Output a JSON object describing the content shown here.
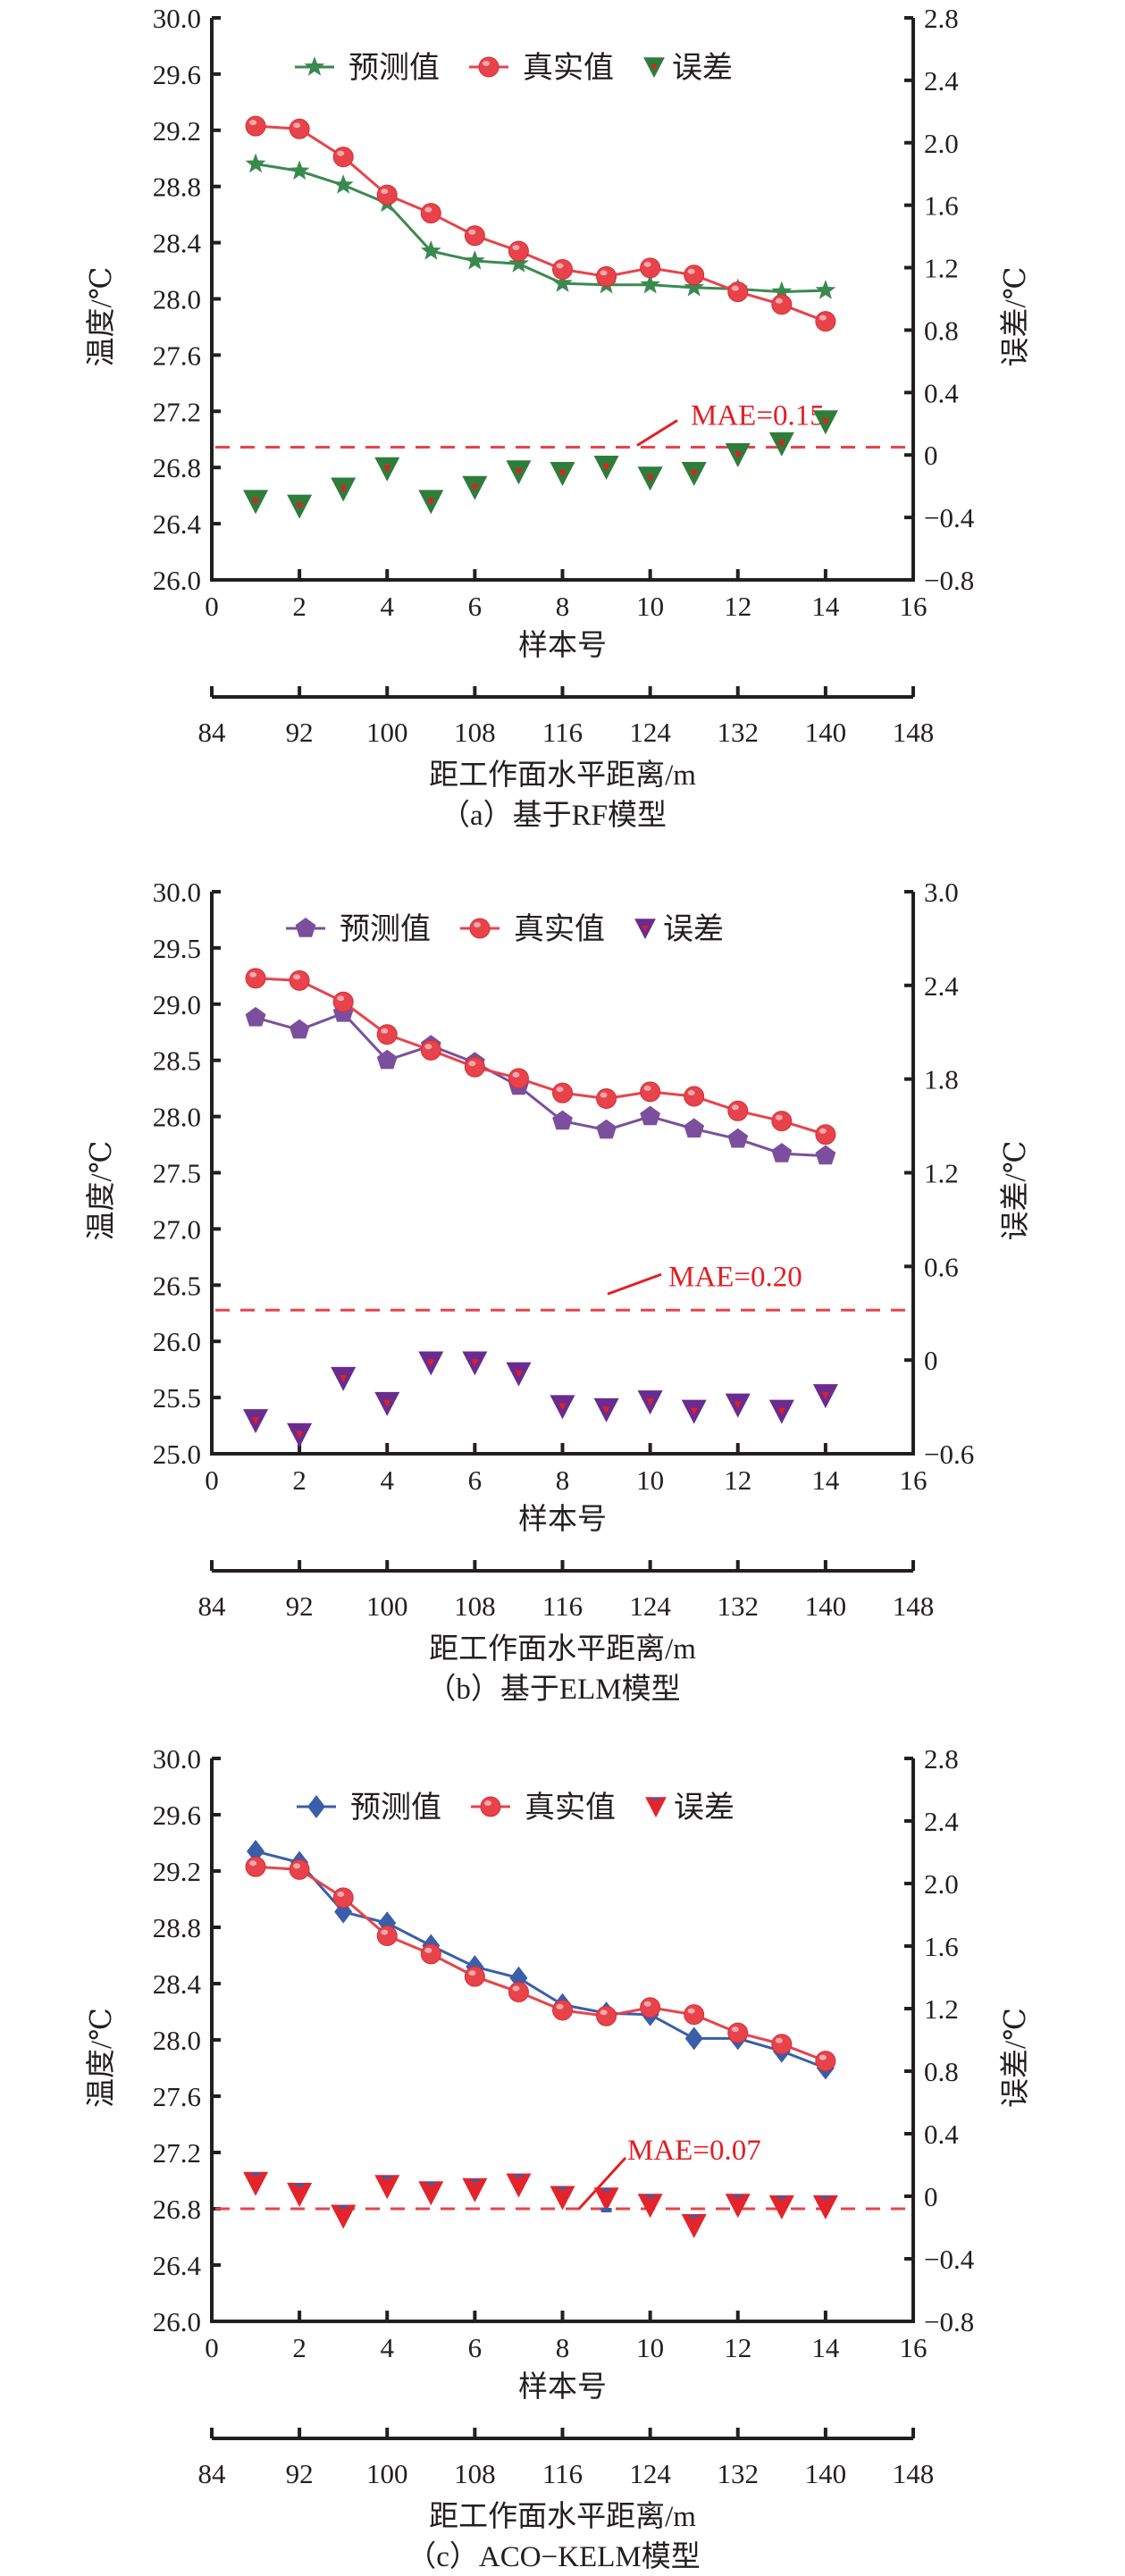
{
  "figure": {
    "x_axis_label": "样本号",
    "distance_axis_label": "距工作面水平距离/m",
    "left_axis_label": "温度/℃",
    "right_axis_label": "误差/℃",
    "legend": {
      "predicted": "预测值",
      "actual": "真实值",
      "error": "误差"
    }
  },
  "chart_data": [
    {
      "id": "a",
      "type": "line",
      "caption": "（a）基于RF模型",
      "xlabel": "样本号",
      "x2label": "距工作面水平距离/m",
      "ylabel": "温度/℃",
      "y2label": "误差/℃",
      "xlim": [
        0,
        16
      ],
      "xticks": [
        "0",
        "2",
        "4",
        "6",
        "8",
        "10",
        "12",
        "14",
        "16"
      ],
      "x2ticks": [
        "84",
        "92",
        "100",
        "108",
        "116",
        "124",
        "132",
        "140",
        "148"
      ],
      "ylim": [
        26.0,
        30.0
      ],
      "yticks": [
        "26.0",
        "26.4",
        "26.8",
        "27.2",
        "27.6",
        "28.0",
        "28.4",
        "28.8",
        "29.2",
        "29.6",
        "30.0"
      ],
      "y2lim": [
        -0.8,
        2.8
      ],
      "y2ticks": [
        "−0.8",
        "−0.4",
        "0",
        "0.4",
        "0.8",
        "1.2",
        "1.6",
        "2.0",
        "2.4",
        "2.8"
      ],
      "legend_position": "top-center",
      "x": [
        1,
        2,
        3,
        4,
        5,
        6,
        7,
        8,
        9,
        10,
        11,
        12,
        13,
        14
      ],
      "series": [
        {
          "name": "预测值",
          "axis": "left",
          "marker": "star",
          "color": "#3a8a4f",
          "values": [
            28.96,
            28.91,
            28.81,
            28.68,
            28.34,
            28.27,
            28.25,
            28.11,
            28.1,
            28.1,
            28.08,
            28.07,
            28.05,
            28.06
          ]
        },
        {
          "name": "真实值",
          "axis": "left",
          "marker": "circle",
          "color": "#e8434b",
          "values": [
            29.23,
            29.21,
            29.01,
            28.74,
            28.61,
            28.45,
            28.34,
            28.21,
            28.16,
            28.22,
            28.17,
            28.05,
            27.96,
            27.84
          ]
        },
        {
          "name": "误差",
          "axis": "right",
          "marker": "triangle-down",
          "color": "#2e7d3b",
          "inner_color": "#e31e24",
          "values": [
            -0.27,
            -0.3,
            -0.19,
            -0.06,
            -0.27,
            -0.18,
            -0.08,
            -0.09,
            -0.05,
            -0.12,
            -0.09,
            0.03,
            0.1,
            0.24
          ]
        }
      ],
      "mae": {
        "label": "MAE=0.15",
        "value": 0.15,
        "line_y2": 0.05,
        "color": "#e31e24"
      }
    },
    {
      "id": "b",
      "type": "line",
      "caption": "（b）基于ELM模型",
      "xlabel": "样本号",
      "x2label": "距工作面水平距离/m",
      "ylabel": "温度/℃",
      "y2label": "误差/℃",
      "xlim": [
        0,
        16
      ],
      "xticks": [
        "0",
        "2",
        "4",
        "6",
        "8",
        "10",
        "12",
        "14",
        "16"
      ],
      "x2ticks": [
        "84",
        "92",
        "100",
        "108",
        "116",
        "124",
        "132",
        "140",
        "148"
      ],
      "ylim": [
        25.0,
        30.0
      ],
      "yticks": [
        "25.0",
        "25.5",
        "26.0",
        "26.5",
        "27.0",
        "27.5",
        "28.0",
        "28.5",
        "29.0",
        "29.5",
        "30.0"
      ],
      "y2lim": [
        -0.6,
        3.0
      ],
      "y2ticks": [
        "−0.6",
        "0",
        "0.6",
        "1.2",
        "1.8",
        "2.4",
        "3.0"
      ],
      "legend_position": "top-center",
      "x": [
        1,
        2,
        3,
        4,
        5,
        6,
        7,
        8,
        9,
        10,
        11,
        12,
        13,
        14
      ],
      "series": [
        {
          "name": "预测值",
          "axis": "left",
          "marker": "pentagon",
          "color": "#7b4f9d",
          "values": [
            28.88,
            28.77,
            28.92,
            28.5,
            28.63,
            28.48,
            28.27,
            27.96,
            27.88,
            28.0,
            27.89,
            27.8,
            27.67,
            27.65
          ]
        },
        {
          "name": "真实值",
          "axis": "left",
          "marker": "circle",
          "color": "#e8434b",
          "values": [
            29.23,
            29.21,
            29.02,
            28.73,
            28.59,
            28.44,
            28.34,
            28.21,
            28.16,
            28.22,
            28.18,
            28.05,
            27.96,
            27.84
          ]
        },
        {
          "name": "误差",
          "axis": "right",
          "marker": "triangle-down",
          "color": "#6a2c8e",
          "inner_color": "#e31e24",
          "values": [
            -0.36,
            -0.45,
            -0.09,
            -0.25,
            0.01,
            0.01,
            -0.06,
            -0.27,
            -0.29,
            -0.24,
            -0.3,
            -0.26,
            -0.3,
            -0.2
          ]
        }
      ],
      "mae": {
        "label": "MAE=0.20",
        "value": 0.2,
        "line_y2": 0.32,
        "color": "#e31e24"
      }
    },
    {
      "id": "c",
      "type": "line",
      "caption": "（c）ACO−KELM模型",
      "xlabel": "样本号",
      "x2label": "距工作面水平距离/m",
      "ylabel": "温度/℃",
      "y2label": "误差/℃",
      "xlim": [
        0,
        16
      ],
      "xticks": [
        "0",
        "2",
        "4",
        "6",
        "8",
        "10",
        "12",
        "14",
        "16"
      ],
      "x2ticks": [
        "84",
        "92",
        "100",
        "108",
        "116",
        "124",
        "132",
        "140",
        "148"
      ],
      "ylim": [
        26.0,
        30.0
      ],
      "yticks": [
        "26.0",
        "26.4",
        "26.8",
        "27.2",
        "27.6",
        "28.0",
        "28.4",
        "28.8",
        "29.2",
        "29.6",
        "30.0"
      ],
      "y2lim": [
        -0.8,
        2.8
      ],
      "y2ticks": [
        "−0.8",
        "−0.4",
        "0",
        "0.4",
        "0.8",
        "1.2",
        "1.6",
        "2.0",
        "2.4",
        "2.8"
      ],
      "legend_position": "top-center",
      "x": [
        1,
        2,
        3,
        4,
        5,
        6,
        7,
        8,
        9,
        10,
        11,
        12,
        13,
        14
      ],
      "series": [
        {
          "name": "预测值",
          "axis": "left",
          "marker": "diamond",
          "color": "#3b5ea8",
          "values": [
            29.34,
            29.26,
            28.91,
            28.83,
            28.67,
            28.52,
            28.44,
            28.25,
            28.19,
            28.18,
            28.01,
            28.01,
            27.92,
            27.8
          ]
        },
        {
          "name": "真实值",
          "axis": "left",
          "marker": "circle",
          "color": "#e8434b",
          "values": [
            29.23,
            29.21,
            29.01,
            28.74,
            28.61,
            28.45,
            28.34,
            28.21,
            28.17,
            28.23,
            28.18,
            28.05,
            27.97,
            27.85
          ]
        },
        {
          "name": "误差",
          "axis": "right",
          "marker": "triangle-down",
          "color": "#e3242b",
          "inner_color": "#3b5ea8",
          "values": [
            0.11,
            0.04,
            -0.1,
            0.09,
            0.05,
            0.07,
            0.1,
            0.02,
            0.01,
            -0.03,
            -0.16,
            -0.03,
            -0.04,
            -0.04
          ]
        }
      ],
      "mae": {
        "label": "MAE=0.07",
        "value": 0.07,
        "line_y2": -0.08,
        "color": "#e31e24"
      }
    }
  ]
}
